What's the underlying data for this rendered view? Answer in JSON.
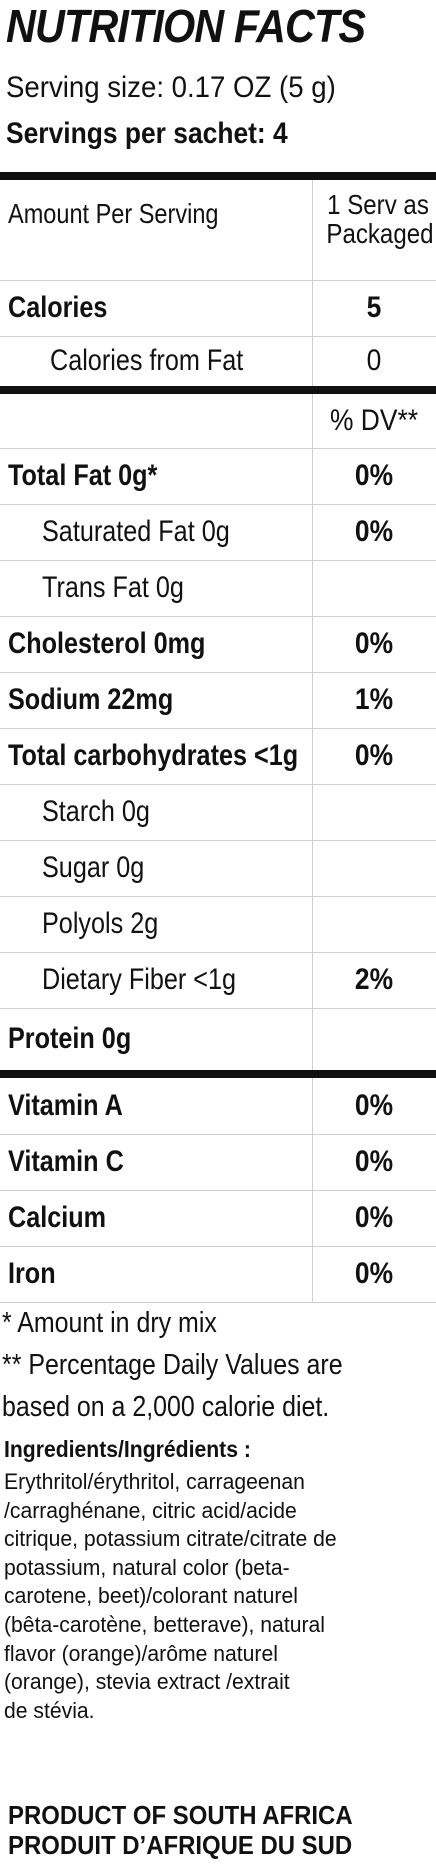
{
  "title": "NUTRITION FACTS",
  "serving_size": "Serving size: 0.17 OZ (5 g)",
  "servings_per": "Servings per sachet: 4",
  "header": {
    "amount_label": "Amount Per Serving",
    "serv_line1": "1 Serv as",
    "serv_line2": "Packaged"
  },
  "rows": [
    {
      "label": "Calories",
      "value": "5"
    },
    {
      "label": "Calories from Fat",
      "value": "0"
    },
    {
      "label": "",
      "value": "% DV**"
    },
    {
      "label": "Total Fat  0g*",
      "value": "0%"
    },
    {
      "label": "Saturated Fat  0g",
      "value": "0%"
    },
    {
      "label": "Trans Fat  0g",
      "value": ""
    },
    {
      "label": "Cholesterol  0mg",
      "value": "0%"
    },
    {
      "label": "Sodium  22mg",
      "value": "1%"
    },
    {
      "label": "Total carbohydrates <1g",
      "value": "0%"
    },
    {
      "label": "Starch  0g",
      "value": ""
    },
    {
      "label": "Sugar  0g",
      "value": ""
    },
    {
      "label": "Polyols  2g",
      "value": ""
    },
    {
      "label": "Dietary Fiber  <1g",
      "value": "2%"
    },
    {
      "label": "Protein  0g",
      "value": ""
    },
    {
      "label": "Vitamin A",
      "value": "0%"
    },
    {
      "label": "Vitamin C",
      "value": "0%"
    },
    {
      "label": "Calcium",
      "value": "0%"
    },
    {
      "label": "Iron",
      "value": "0%"
    }
  ],
  "footnotes": [
    "* Amount in dry mix",
    "** Percentage Daily Values are",
    "based on a 2,000 calorie diet."
  ],
  "ingredients_title": "Ingredients/Ingrédients :",
  "ingredients_lines": [
    "Erythritol/érythritol, carrageenan",
    "/carraghénane, citric acid/acide",
    "citrique, potassium citrate/citrate de",
    "potassium, natural color (beta-",
    "carotene, beet)/colorant naturel",
    "(bêta-carotène, betterave), natural",
    "flavor (orange)/arôme naturel",
    "(orange), stevia extract /extrait",
    "de stévia."
  ],
  "origin_en": "PRODUCT OF SOUTH AFRICA",
  "origin_fr": "PRODUIT D’AFRIQUE DU SUD"
}
